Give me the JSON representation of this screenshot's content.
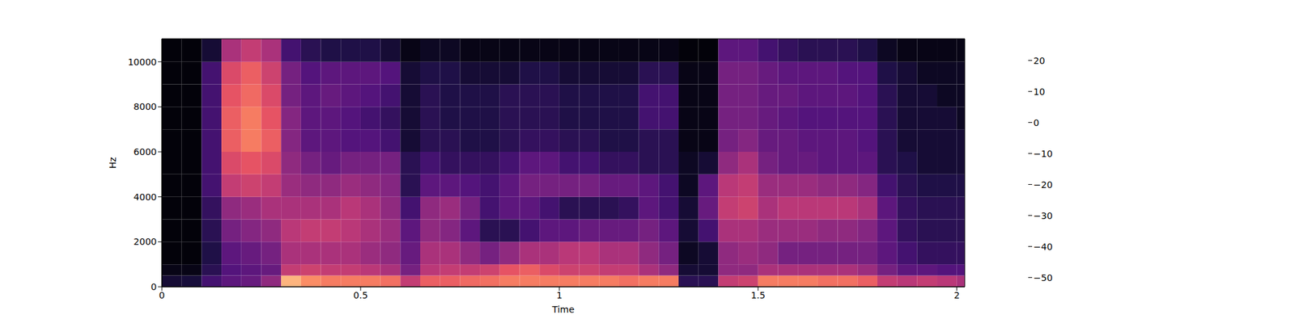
{
  "chart_data": {
    "type": "heatmap",
    "x_label": "Time",
    "y_label": "Hz",
    "xlim": [
      0,
      2.02
    ],
    "xticks": [
      0,
      0.5,
      1,
      1.5,
      2
    ],
    "ylim": [
      0,
      11025
    ],
    "yticks": [
      0,
      2000,
      4000,
      6000,
      8000,
      10000
    ],
    "x_edges": [
      0,
      0.05,
      0.1,
      0.15,
      0.2,
      0.25,
      0.3,
      0.35,
      0.4,
      0.45,
      0.5,
      0.55,
      0.6,
      0.65,
      0.7,
      0.75,
      0.8,
      0.85,
      0.9,
      0.95,
      1,
      1.05,
      1.1,
      1.15,
      1.2,
      1.25,
      1.3,
      1.35,
      1.4,
      1.45,
      1.5,
      1.55,
      1.6,
      1.65,
      1.7,
      1.75,
      1.8,
      1.85,
      1.9,
      1.95,
      2,
      2.02
    ],
    "y_edges": [
      0,
      500,
      1000,
      2000,
      3000,
      4000,
      5000,
      6000,
      7000,
      8000,
      9000,
      10000,
      11025
    ],
    "cells": [
      [
        -45,
        -50,
        -52,
        -52,
        -52,
        -52,
        -52,
        -52,
        -52,
        -52,
        -52,
        -52
      ],
      [
        -44,
        -50,
        -52,
        -52,
        -52,
        -52,
        -52,
        -52,
        -52,
        -52,
        -52,
        -52
      ],
      [
        -35,
        -40,
        -42,
        -40,
        -38,
        -35,
        -35,
        -35,
        -35,
        -35,
        -35,
        -45
      ],
      [
        -30,
        -32,
        -30,
        -25,
        -20,
        -10,
        -5,
        0,
        0,
        -2,
        -5,
        -15
      ],
      [
        -28,
        -30,
        -28,
        -22,
        -18,
        -8,
        -2,
        5,
        5,
        2,
        0,
        -10
      ],
      [
        -20,
        -28,
        -25,
        -20,
        -15,
        -10,
        -5,
        0,
        -2,
        -5,
        -8,
        -15
      ],
      [
        15,
        -10,
        -15,
        -12,
        -15,
        -18,
        -20,
        -22,
        -22,
        -25,
        -25,
        -35
      ],
      [
        8,
        -8,
        -15,
        -10,
        -15,
        -20,
        -25,
        -30,
        -30,
        -30,
        -32,
        -40
      ],
      [
        5,
        -10,
        -15,
        -10,
        -15,
        -20,
        -28,
        -30,
        -30,
        -28,
        -30,
        -42
      ],
      [
        5,
        -10,
        -15,
        -12,
        -12,
        -18,
        -25,
        -32,
        -32,
        -30,
        -30,
        -42
      ],
      [
        5,
        -12,
        -18,
        -15,
        -15,
        -20,
        -25,
        -32,
        -35,
        -32,
        -30,
        -42
      ],
      [
        3,
        -15,
        -20,
        -18,
        -20,
        -22,
        -25,
        -35,
        -38,
        -35,
        -32,
        -45
      ],
      [
        -10,
        -25,
        -28,
        -30,
        -35,
        -40,
        -40,
        -45,
        -45,
        -45,
        -45,
        -50
      ],
      [
        0,
        -12,
        -15,
        -20,
        -20,
        -30,
        -35,
        -40,
        -40,
        -40,
        -42,
        -48
      ],
      [
        0,
        -10,
        -15,
        -22,
        -18,
        -30,
        -38,
        -40,
        -42,
        -42,
        -42,
        -48
      ],
      [
        2,
        -10,
        -20,
        -30,
        -25,
        -32,
        -38,
        -42,
        -42,
        -42,
        -45,
        -50
      ],
      [
        3,
        -8,
        -25,
        -40,
        -35,
        -35,
        -38,
        -42,
        -42,
        -42,
        -45,
        -50
      ],
      [
        5,
        -2,
        -20,
        -40,
        -30,
        -30,
        -35,
        -40,
        -40,
        -40,
        -45,
        -50
      ],
      [
        5,
        0,
        -15,
        -35,
        -30,
        -25,
        -30,
        -38,
        -40,
        -40,
        -42,
        -50
      ],
      [
        5,
        -5,
        -15,
        -30,
        -35,
        -25,
        -30,
        -38,
        -40,
        -40,
        -42,
        -50
      ],
      [
        5,
        -8,
        -12,
        -30,
        -40,
        -25,
        -35,
        -40,
        -42,
        -42,
        -45,
        -50
      ],
      [
        5,
        -8,
        -12,
        -28,
        -40,
        -25,
        -35,
        -40,
        -42,
        -42,
        -45,
        -50
      ],
      [
        5,
        -10,
        -15,
        -28,
        -40,
        -28,
        -38,
        -42,
        -42,
        -42,
        -45,
        -50
      ],
      [
        3,
        -10,
        -15,
        -28,
        -38,
        -28,
        -38,
        -42,
        -42,
        -42,
        -45,
        -50
      ],
      [
        5,
        -15,
        -20,
        -25,
        -30,
        -30,
        -40,
        -40,
        -35,
        -35,
        -40,
        -50
      ],
      [
        5,
        -20,
        -25,
        -30,
        -35,
        -35,
        -40,
        -40,
        -35,
        -35,
        -40,
        -50
      ],
      [
        -40,
        -45,
        -48,
        -45,
        -45,
        -48,
        -48,
        -50,
        -50,
        -50,
        -50,
        -52
      ],
      [
        -40,
        -45,
        -45,
        -35,
        -28,
        -30,
        -45,
        -50,
        -50,
        -50,
        -50,
        -52
      ],
      [
        -10,
        -20,
        -20,
        -15,
        -10,
        -12,
        -20,
        -25,
        -25,
        -25,
        -25,
        -30
      ],
      [
        -8,
        -20,
        -18,
        -15,
        -8,
        -10,
        -15,
        -22,
        -25,
        -25,
        -25,
        -30
      ],
      [
        5,
        -15,
        -20,
        -18,
        -15,
        -18,
        -25,
        -28,
        -28,
        -28,
        -28,
        -35
      ],
      [
        5,
        -15,
        -25,
        -18,
        -12,
        -18,
        -28,
        -28,
        -30,
        -28,
        -30,
        -38
      ],
      [
        5,
        -15,
        -25,
        -18,
        -12,
        -18,
        -28,
        -30,
        -32,
        -30,
        -30,
        -40
      ],
      [
        3,
        -15,
        -25,
        -20,
        -12,
        -20,
        -30,
        -30,
        -32,
        -30,
        -30,
        -40
      ],
      [
        3,
        -15,
        -25,
        -20,
        -12,
        -20,
        -30,
        -30,
        -32,
        -30,
        -32,
        -40
      ],
      [
        0,
        -18,
        -25,
        -22,
        -15,
        -22,
        -30,
        -32,
        -32,
        -32,
        -32,
        -42
      ],
      [
        -10,
        -25,
        -30,
        -30,
        -30,
        -35,
        -40,
        -40,
        -40,
        -40,
        -42,
        -48
      ],
      [
        -12,
        -30,
        -35,
        -38,
        -38,
        -40,
        -42,
        -45,
        -45,
        -45,
        -45,
        -50
      ],
      [
        -10,
        -30,
        -38,
        -40,
        -40,
        -42,
        -45,
        -45,
        -45,
        -45,
        -48,
        -50
      ],
      [
        -12,
        -32,
        -38,
        -40,
        -40,
        -42,
        -45,
        -45,
        -45,
        -48,
        -48,
        -50
      ],
      [
        -15,
        -32,
        -38,
        -40,
        -40,
        -42,
        -45,
        -45,
        -48,
        -48,
        -48,
        -50
      ]
    ],
    "colorbar": {
      "lim": [
        -53,
        27
      ],
      "ticks": [
        {
          "value": -50,
          "label": "−50"
        },
        {
          "value": -40,
          "label": "−40"
        },
        {
          "value": -30,
          "label": "−30"
        },
        {
          "value": -20,
          "label": "−20"
        },
        {
          "value": -10,
          "label": "−10"
        },
        0,
        10,
        20
      ]
    }
  }
}
